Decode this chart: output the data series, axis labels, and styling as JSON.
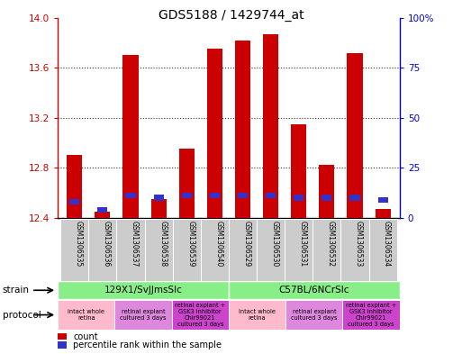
{
  "title": "GDS5188 / 1429744_at",
  "samples": [
    "GSM1306535",
    "GSM1306536",
    "GSM1306537",
    "GSM1306538",
    "GSM1306539",
    "GSM1306540",
    "GSM1306529",
    "GSM1306530",
    "GSM1306531",
    "GSM1306532",
    "GSM1306533",
    "GSM1306534"
  ],
  "count_values": [
    12.9,
    12.45,
    13.7,
    12.55,
    12.95,
    13.75,
    13.82,
    13.87,
    13.15,
    12.82,
    13.72,
    12.47
  ],
  "percentile_values": [
    8,
    4,
    11,
    10,
    11,
    11,
    11,
    11,
    10,
    10,
    10,
    9
  ],
  "y_min": 12.4,
  "y_max": 14.0,
  "y_ticks": [
    12.4,
    12.8,
    13.2,
    13.6,
    14.0
  ],
  "right_y_ticks": [
    0,
    25,
    50,
    75,
    100
  ],
  "bar_color": "#cc0000",
  "blue_color": "#3333cc",
  "bg_color": "#ffffff",
  "grid_color": "#333333",
  "left_axis_color": "#cc0000",
  "right_axis_color": "#0000cc",
  "sample_bg_color": "#cccccc",
  "strain_color": "#88ee88",
  "prot_color_1": "#ffbbcc",
  "prot_color_2": "#dd88dd",
  "prot_color_3": "#cc44cc",
  "strain_groups": [
    {
      "label": "129X1/SvJJmsSlc",
      "start": 0,
      "end": 6
    },
    {
      "label": "C57BL/6NCrSlc",
      "start": 6,
      "end": 12
    }
  ],
  "protocol_groups": [
    {
      "label": "intact whole\nretina",
      "start": 0,
      "end": 2,
      "type": 1
    },
    {
      "label": "retinal explant\ncultured 3 days",
      "start": 2,
      "end": 4,
      "type": 2
    },
    {
      "label": "retinal explant +\nGSK3 inhibitor\nChir99021\ncultured 3 days",
      "start": 4,
      "end": 6,
      "type": 3
    },
    {
      "label": "intact whole\nretina",
      "start": 6,
      "end": 8,
      "type": 1
    },
    {
      "label": "retinal explant\ncultured 3 days",
      "start": 8,
      "end": 10,
      "type": 2
    },
    {
      "label": "retinal explant +\nGSK3 inhibitor\nChir99021\ncultured 3 days",
      "start": 10,
      "end": 12,
      "type": 3
    }
  ]
}
